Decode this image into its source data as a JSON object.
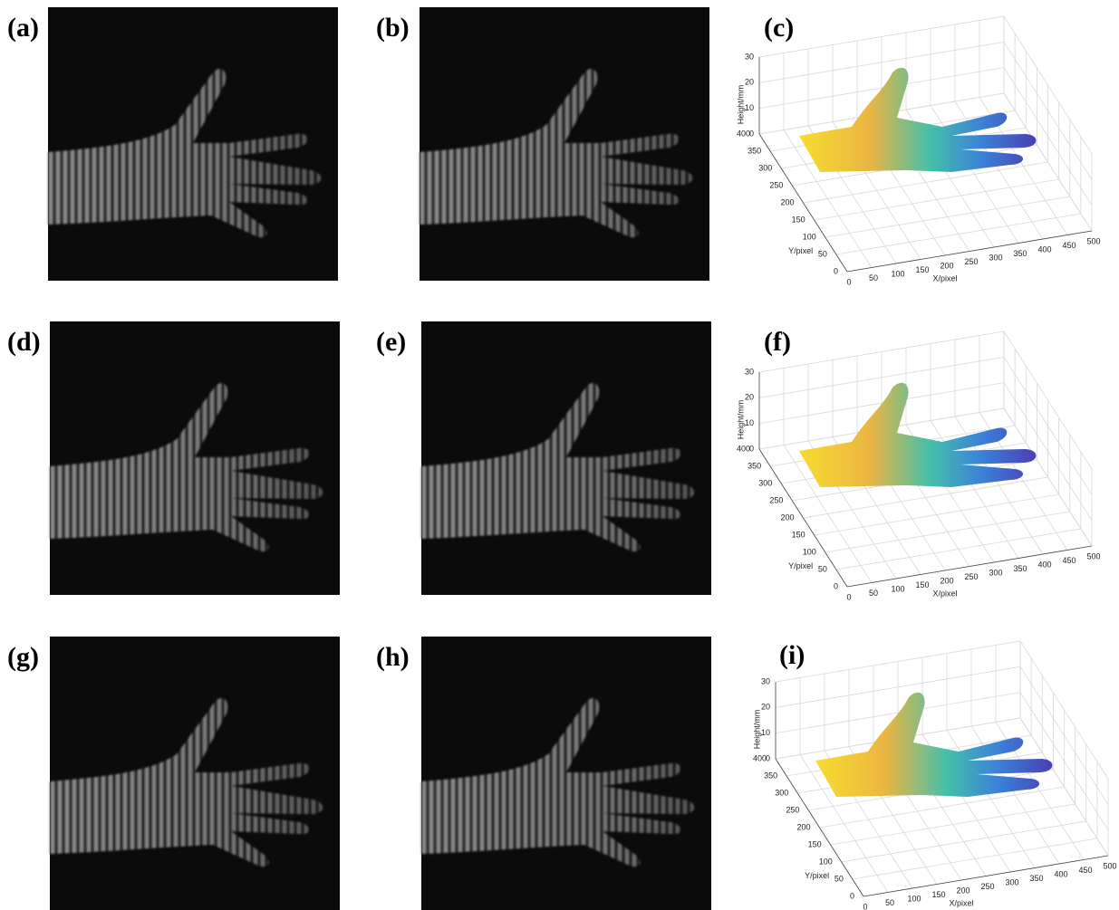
{
  "panels": [
    {
      "label": "(a)"
    },
    {
      "label": "(b)"
    },
    {
      "label": "(c)",
      "plot": {
        "zlabel": "Height/mm",
        "ylabel": "Y/pixel",
        "xlabel": "X/pixel",
        "xlim": [
          0,
          500
        ],
        "xticks": [
          0,
          50,
          100,
          150,
          200,
          250,
          300,
          350,
          400,
          450,
          500
        ],
        "ylim": [
          0,
          400
        ],
        "yticks": [
          0,
          50,
          100,
          150,
          200,
          250,
          300,
          350,
          400
        ],
        "zlim": [
          0,
          30
        ],
        "zticks": [
          0,
          10,
          20,
          30
        ]
      }
    },
    {
      "label": "(d)"
    },
    {
      "label": "(e)"
    },
    {
      "label": "(f)",
      "plot": {
        "zlabel": "Height/mm",
        "ylabel": "Y/pixel",
        "xlabel": "X/pixel",
        "xlim": [
          0,
          500
        ],
        "xticks": [
          0,
          50,
          100,
          150,
          200,
          250,
          300,
          350,
          400,
          450,
          500
        ],
        "ylim": [
          0,
          400
        ],
        "yticks": [
          0,
          50,
          100,
          150,
          200,
          250,
          300,
          350,
          400
        ],
        "zlim": [
          0,
          30
        ],
        "zticks": [
          0,
          10,
          20,
          30
        ]
      }
    },
    {
      "label": "(g)"
    },
    {
      "label": "(h)"
    },
    {
      "label": "(i)",
      "plot": {
        "zlabel": "Height/mm",
        "ylabel": "Y/pixel",
        "xlabel": "X/pixel",
        "xlim": [
          0,
          500
        ],
        "xticks": [
          0,
          50,
          100,
          150,
          200,
          250,
          300,
          350,
          400,
          450,
          500
        ],
        "ylim": [
          0,
          400
        ],
        "yticks": [
          0,
          50,
          100,
          150,
          200,
          250,
          300,
          350,
          400
        ],
        "zlim": [
          0,
          30
        ],
        "zticks": [
          0,
          10,
          20,
          30
        ]
      }
    }
  ]
}
